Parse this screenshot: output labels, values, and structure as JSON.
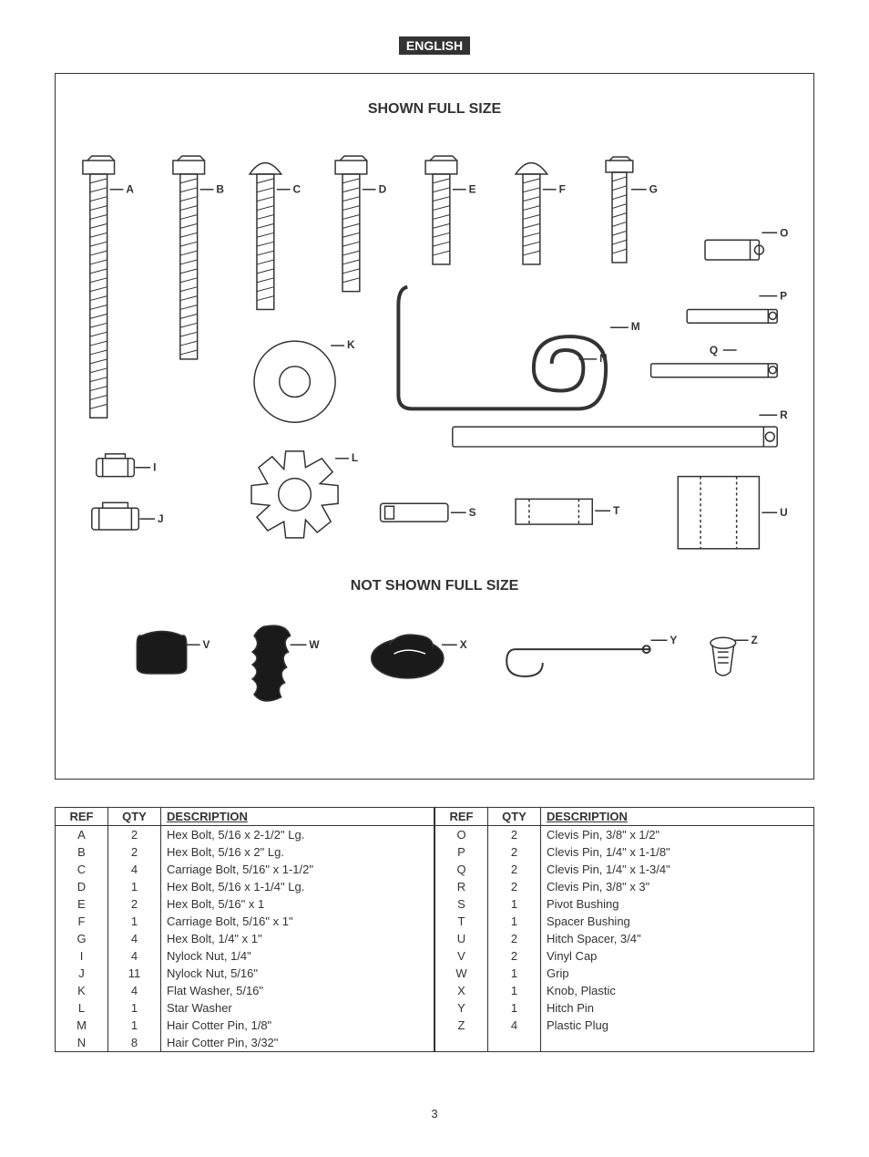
{
  "language_tag": "ENGLISH",
  "diagram": {
    "title_top": "SHOWN FULL SIZE",
    "title_bottom": "NOT SHOWN FULL SIZE",
    "labels_top": [
      "A",
      "B",
      "C",
      "D",
      "E",
      "F",
      "G",
      "O",
      "P",
      "Q",
      "R"
    ],
    "labels_mid": [
      "I",
      "J",
      "K",
      "L",
      "M",
      "N",
      "S",
      "T",
      "U"
    ],
    "labels_bottom": [
      "V",
      "W",
      "X",
      "Y",
      "Z"
    ]
  },
  "table": {
    "headers": {
      "ref": "REF",
      "qty": "QTY",
      "desc": "DESCRIPTION"
    },
    "left": [
      {
        "ref": "A",
        "qty": "2",
        "desc": "Hex Bolt, 5/16 x 2-1/2\" Lg."
      },
      {
        "ref": "B",
        "qty": "2",
        "desc": "Hex Bolt, 5/16 x 2\" Lg."
      },
      {
        "ref": "C",
        "qty": "4",
        "desc": "Carriage Bolt, 5/16\" x 1-1/2\""
      },
      {
        "ref": "D",
        "qty": "1",
        "desc": "Hex Bolt, 5/16 x 1-1/4\" Lg."
      },
      {
        "ref": "E",
        "qty": "2",
        "desc": "Hex Bolt, 5/16\" x 1"
      },
      {
        "ref": "F",
        "qty": "1",
        "desc": "Carriage Bolt, 5/16\" x 1\""
      },
      {
        "ref": "G",
        "qty": "4",
        "desc": "Hex Bolt, 1/4\" x 1\""
      },
      {
        "ref": "I",
        "qty": "4",
        "desc": "Nylock Nut, 1/4\""
      },
      {
        "ref": "J",
        "qty": "11",
        "desc": "Nylock Nut, 5/16\""
      },
      {
        "ref": "K",
        "qty": "4",
        "desc": "Flat Washer, 5/16\""
      },
      {
        "ref": "L",
        "qty": "1",
        "desc": "Star Washer"
      },
      {
        "ref": "M",
        "qty": "1",
        "desc": "Hair Cotter Pin, 1/8\""
      },
      {
        "ref": "N",
        "qty": "8",
        "desc": "Hair Cotter Pin, 3/32\""
      }
    ],
    "right": [
      {
        "ref": "O",
        "qty": "2",
        "desc": "Clevis Pin, 3/8\" x 1/2\""
      },
      {
        "ref": "P",
        "qty": "2",
        "desc": "Clevis Pin, 1/4\" x 1-1/8\""
      },
      {
        "ref": "Q",
        "qty": "2",
        "desc": "Clevis Pin, 1/4\" x 1-3/4\""
      },
      {
        "ref": "R",
        "qty": "2",
        "desc": "Clevis Pin, 3/8\" x 3\""
      },
      {
        "ref": "S",
        "qty": "1",
        "desc": "Pivot Bushing"
      },
      {
        "ref": "T",
        "qty": "1",
        "desc": "Spacer Bushing"
      },
      {
        "ref": "U",
        "qty": "2",
        "desc": "Hitch Spacer, 3/4\""
      },
      {
        "ref": "V",
        "qty": "2",
        "desc": "Vinyl Cap"
      },
      {
        "ref": "W",
        "qty": "1",
        "desc": "Grip"
      },
      {
        "ref": "X",
        "qty": "1",
        "desc": "Knob, Plastic"
      },
      {
        "ref": "Y",
        "qty": "1",
        "desc": "Hitch Pin"
      },
      {
        "ref": "Z",
        "qty": "4",
        "desc": "Plastic Plug"
      }
    ]
  },
  "page_number": "3",
  "colors": {
    "stroke": "#333333",
    "fill_dark": "#1a1a1a",
    "background": "#ffffff"
  }
}
